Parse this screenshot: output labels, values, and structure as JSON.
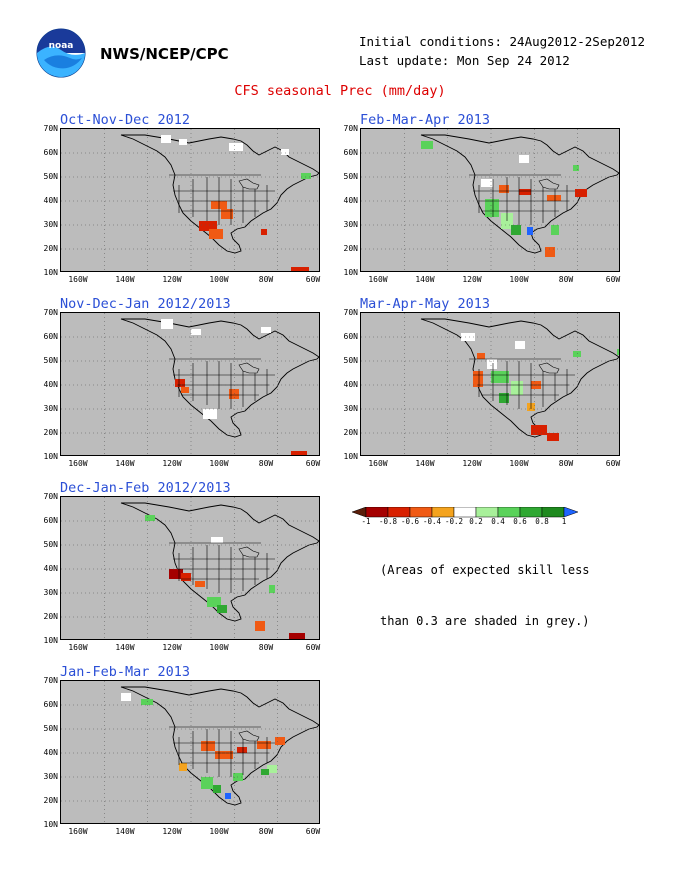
{
  "header": {
    "org": "NWS/NCEP/CPC",
    "logo_icon": "noaa-logo-icon",
    "initial_conditions": "Initial conditions: 24Aug2012-2Sep2012",
    "last_update": "Last update: Mon Sep 24 2012",
    "chart_title": "CFS seasonal Prec (mm/day)"
  },
  "axes": {
    "y_ticks": [
      "70N",
      "60N",
      "50N",
      "40N",
      "30N",
      "20N",
      "10N"
    ],
    "x_ticks": [
      "160W",
      "140W",
      "120W",
      "100W",
      "80W",
      "60W"
    ]
  },
  "panels": [
    {
      "id": "ond",
      "title": "Oct-Nov-Dec 2012"
    },
    {
      "id": "ndj",
      "title": "Nov-Dec-Jan 2012/2013"
    },
    {
      "id": "djf",
      "title": "Dec-Jan-Feb 2012/2013"
    },
    {
      "id": "jfm",
      "title": "Jan-Feb-Mar 2013"
    },
    {
      "id": "fma",
      "title": "Feb-Mar-Apr 2013"
    },
    {
      "id": "mam",
      "title": "Mar-Apr-May 2013"
    }
  ],
  "legend": {
    "labels": [
      "-1",
      "-0.8",
      "-0.6",
      "-0.4",
      "-0.2",
      "0.2",
      "0.4",
      "0.6",
      "0.8",
      "1"
    ],
    "colors": [
      "#5a1e0a",
      "#a50000",
      "#d82000",
      "#f05a14",
      "#f4a31e",
      "#ffffff",
      "#a8f09a",
      "#5ad25a",
      "#2fa832",
      "#1e8a1e",
      "#1e64ff"
    ],
    "missing_color": "#bcbcbc",
    "note_line1": "(Areas of expected skill less",
    "note_line2": "than 0.3 are shaded in grey.)"
  }
}
